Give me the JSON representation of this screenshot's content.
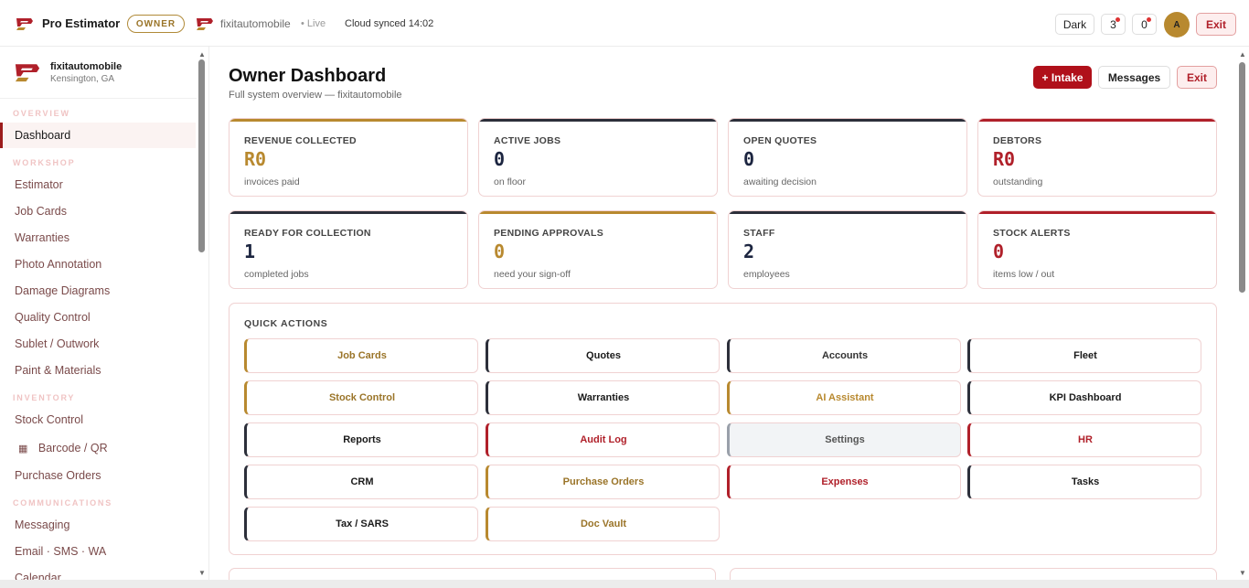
{
  "topbar": {
    "brand": "Pro Estimator",
    "role": "OWNER",
    "shop": "fixitautomobile",
    "live": "• Live",
    "synced": "Cloud synced 14:02",
    "dark_label": "Dark",
    "notif_count": "3",
    "msg_count": "0",
    "avatar": "A",
    "exit_label": "Exit"
  },
  "sidebar": {
    "shop_name": "fixitautomobile",
    "location": "Kensington, GA",
    "sections": {
      "overview": "OVERVIEW",
      "workshop": "WORKSHOP",
      "inventory": "INVENTORY",
      "communications": "COMMUNICATIONS"
    },
    "items": {
      "dashboard": "Dashboard",
      "estimator": "Estimator",
      "job_cards": "Job Cards",
      "warranties": "Warranties",
      "photo_annotation": "Photo Annotation",
      "damage_diagrams": "Damage Diagrams",
      "quality_control": "Quality Control",
      "sublet": "Sublet / Outwork",
      "paint": "Paint & Materials",
      "stock_control": "Stock Control",
      "barcode": "Barcode / QR",
      "purchase_orders": "Purchase Orders",
      "messaging": "Messaging",
      "email": "Email · SMS · WA",
      "calendar": "Calendar"
    }
  },
  "main": {
    "title": "Owner Dashboard",
    "subtitle": "Full system overview — fixitautomobile",
    "intake_label": "+ Intake",
    "messages_label": "Messages",
    "exit_label": "Exit",
    "cards": [
      {
        "label": "REVENUE COLLECTED",
        "value": "R0",
        "note": "invoices paid",
        "accent": "#b8892f",
        "value_color": "#b8892f"
      },
      {
        "label": "ACTIVE JOBS",
        "value": "0",
        "note": "on floor",
        "accent": "#2c2f3a",
        "value_color": "#1c2540"
      },
      {
        "label": "OPEN QUOTES",
        "value": "0",
        "note": "awaiting decision",
        "accent": "#2c2f3a",
        "value_color": "#1c2540"
      },
      {
        "label": "DEBTORS",
        "value": "R0",
        "note": "outstanding",
        "accent": "#b0202a",
        "value_color": "#b0202a"
      },
      {
        "label": "READY FOR COLLECTION",
        "value": "1",
        "note": "completed jobs",
        "accent": "#2c2f3a",
        "value_color": "#1c2540"
      },
      {
        "label": "PENDING APPROVALS",
        "value": "0",
        "note": "need your sign-off",
        "accent": "#b8892f",
        "value_color": "#b8892f"
      },
      {
        "label": "STAFF",
        "value": "2",
        "note": "employees",
        "accent": "#2c2f3a",
        "value_color": "#1c2540"
      },
      {
        "label": "STOCK ALERTS",
        "value": "0",
        "note": "items low / out",
        "accent": "#b0202a",
        "value_color": "#b0202a"
      }
    ],
    "quick_actions_title": "QUICK ACTIONS",
    "quick_actions": [
      {
        "label": "Job Cards",
        "accent": "#b8892f",
        "color": "#9a7428"
      },
      {
        "label": "Quotes",
        "accent": "#2c2f3a",
        "color": "#1a1a1a"
      },
      {
        "label": "Accounts",
        "accent": "#2c2f3a",
        "color": "#333"
      },
      {
        "label": "Fleet",
        "accent": "#2c2f3a",
        "color": "#1a1a1a"
      },
      {
        "label": "Stock Control",
        "accent": "#b8892f",
        "color": "#9a7428"
      },
      {
        "label": "Warranties",
        "accent": "#2c2f3a",
        "color": "#1a1a1a"
      },
      {
        "label": "AI Assistant",
        "accent": "#b8892f",
        "color": "#b8892f"
      },
      {
        "label": "KPI Dashboard",
        "accent": "#2c2f3a",
        "color": "#1a1a1a"
      },
      {
        "label": "Reports",
        "accent": "#2c2f3a",
        "color": "#1a1a1a"
      },
      {
        "label": "Audit Log",
        "accent": "#b0202a",
        "color": "#b0202a"
      },
      {
        "label": "Settings",
        "accent": "#9aa0aa",
        "color": "#555"
      },
      {
        "label": "HR",
        "accent": "#b0202a",
        "color": "#b0202a"
      },
      {
        "label": "CRM",
        "accent": "#2c2f3a",
        "color": "#1a1a1a"
      },
      {
        "label": "Purchase Orders",
        "accent": "#b8892f",
        "color": "#9a7428"
      },
      {
        "label": "Expenses",
        "accent": "#b0202a",
        "color": "#b0202a"
      },
      {
        "label": "Tasks",
        "accent": "#2c2f3a",
        "color": "#1a1a1a"
      },
      {
        "label": "Tax / SARS",
        "accent": "#2c2f3a",
        "color": "#1a1a1a"
      },
      {
        "label": "Doc Vault",
        "accent": "#b8892f",
        "color": "#9a7428"
      }
    ]
  }
}
